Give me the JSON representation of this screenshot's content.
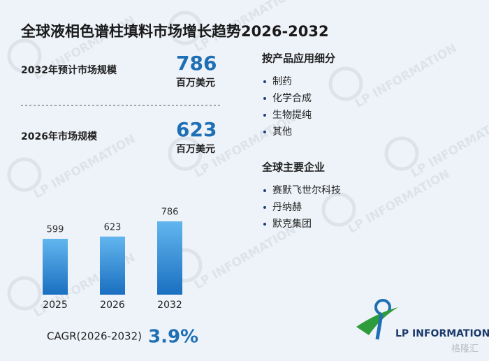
{
  "title": "全球液相色谱柱填料市场增长趋势2026-2032",
  "stats": [
    {
      "label": "2032年预计市场规模",
      "value": 786,
      "unit": "百万美元"
    },
    {
      "label": "2026年市场规模",
      "value": 623,
      "unit": "百万美元"
    }
  ],
  "segments": {
    "heading": "按产品应用细分",
    "items": [
      "制药",
      "化学合成",
      "生物提纯",
      "其他"
    ]
  },
  "companies": {
    "heading": "全球主要企业",
    "items": [
      "赛默飞世尔科技",
      "丹纳赫",
      "默克集团"
    ]
  },
  "cagr": {
    "label": "CAGR(2026-2032)",
    "value": "3.9%"
  },
  "logo": "LP INFORMATION",
  "watermark": "LP INFORMATION",
  "source_mark": "格隆汇",
  "chart_data": {
    "type": "bar",
    "categories": [
      "2025",
      "2026",
      "2032"
    ],
    "values": [
      599,
      623,
      786
    ],
    "color": "#1a6fc0"
  }
}
